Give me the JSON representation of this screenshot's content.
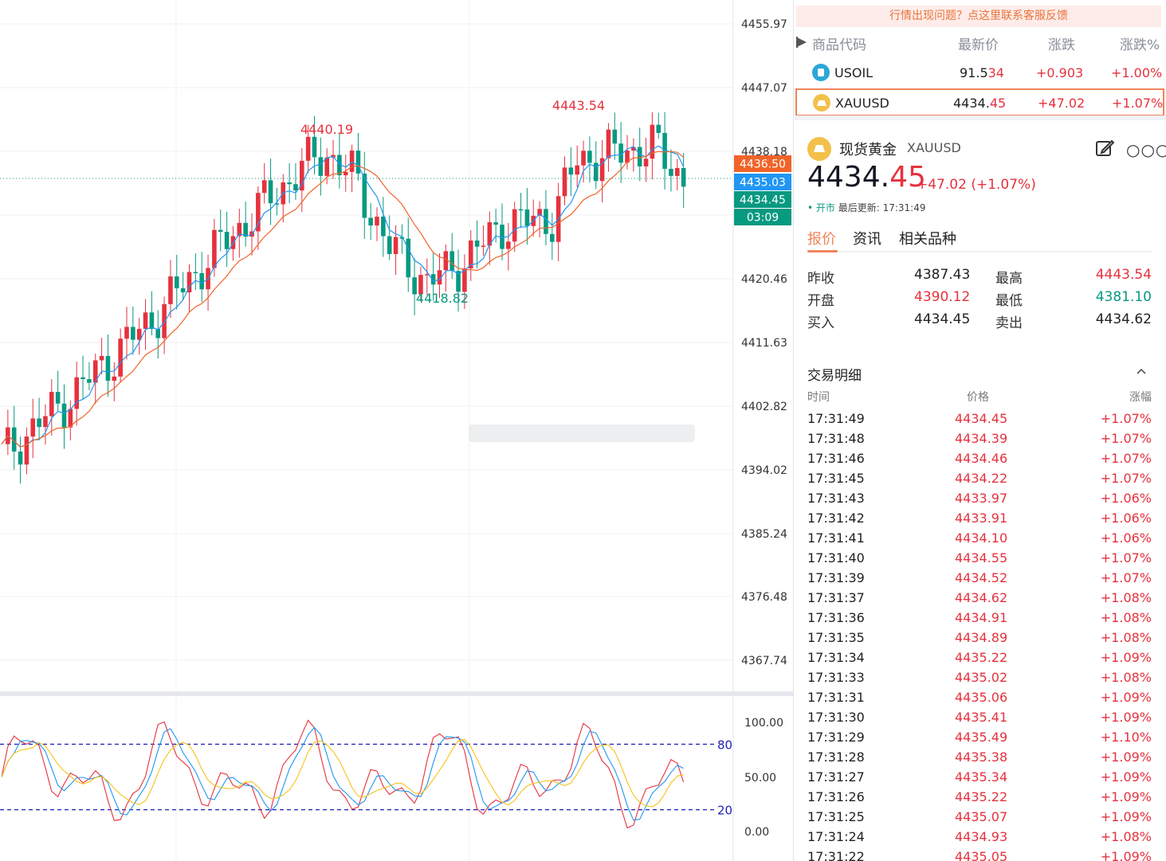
{
  "chart": {
    "price_axis_labels": [
      "4455.97",
      "4447.07",
      "4438.18",
      "4420.46",
      "4411.63",
      "4402.82",
      "4394.02",
      "4385.24",
      "4376.48",
      "4367.74"
    ],
    "price_tags": [
      {
        "label": "4436.50",
        "color": "#f0642a"
      },
      {
        "label": "4435.03",
        "color": "#2196f3"
      },
      {
        "label": "4434.45",
        "color": "#089981"
      },
      {
        "label": "03:09",
        "color": "#089981"
      }
    ],
    "annotations": [
      {
        "label": "4440.19",
        "color": "#e5323e"
      },
      {
        "label": "4443.54",
        "color": "#e5323e"
      },
      {
        "label": "4418.82",
        "color": "#089981"
      }
    ],
    "osc_axis_labels": [
      "100.00",
      "50.00",
      "0.00"
    ],
    "osc_levels": [
      "80",
      "20"
    ],
    "colors": {
      "up": "#e5323e",
      "down": "#089981",
      "ma_fast": "#2196f3",
      "ma_slow": "#f0642a",
      "osc_k": "#e5323e",
      "osc_d": "#2196f3",
      "osc_j": "#f7c21c",
      "level": "#1f1fb8"
    }
  },
  "panel": {
    "notice": "行情出现问题？点这里联系客服反馈",
    "watchlist": {
      "headers": {
        "code": "商品代码",
        "last": "最新价",
        "change": "涨跌",
        "change_pct": "涨跌%"
      },
      "rows": [
        {
          "symbol": "USOIL",
          "price_main": "91.5",
          "price_tail": "34",
          "change": "+0.903",
          "change_pct": "+1.00%",
          "icon": "oil-icon",
          "icon_color": "#2aa7d8"
        },
        {
          "symbol": "XAUUSD",
          "price_main": "4434.",
          "price_tail": "45",
          "change": "+47.02",
          "change_pct": "+1.07%",
          "icon": "gold-icon",
          "icon_color": "#f3c04a"
        }
      ]
    },
    "detail": {
      "name": "现货黄金",
      "symbol": "XAUUSD",
      "price_int": "4434.",
      "price_frac": "45",
      "change": "+47.02 (+1.07%)",
      "status": "• 开市",
      "updated": "最后更新: 17:31:49",
      "tabs": [
        "报价",
        "资讯",
        "相关品种"
      ],
      "stats": [
        {
          "l1": "昨收",
          "v1": "4387.43",
          "c1": "#222",
          "l2": "最高",
          "v2": "4443.54",
          "c2": "#e5323e"
        },
        {
          "l1": "开盘",
          "v1": "4390.12",
          "c1": "#e5323e",
          "l2": "最低",
          "v2": "4381.10",
          "c2": "#089981"
        },
        {
          "l1": "买入",
          "v1": "4434.45",
          "c1": "#222",
          "l2": "卖出",
          "v2": "4434.62",
          "c2": "#222"
        }
      ]
    },
    "trades": {
      "title": "交易明细",
      "headers": {
        "time": "时间",
        "price": "价格",
        "change": "涨幅"
      },
      "rows": [
        {
          "time": "17:31:49",
          "price": "4434.45",
          "pct": "+1.07%"
        },
        {
          "time": "17:31:48",
          "price": "4434.39",
          "pct": "+1.07%"
        },
        {
          "time": "17:31:46",
          "price": "4434.46",
          "pct": "+1.07%"
        },
        {
          "time": "17:31:45",
          "price": "4434.22",
          "pct": "+1.07%"
        },
        {
          "time": "17:31:43",
          "price": "4433.97",
          "pct": "+1.06%"
        },
        {
          "time": "17:31:42",
          "price": "4433.91",
          "pct": "+1.06%"
        },
        {
          "time": "17:31:41",
          "price": "4434.10",
          "pct": "+1.06%"
        },
        {
          "time": "17:31:40",
          "price": "4434.55",
          "pct": "+1.07%"
        },
        {
          "time": "17:31:39",
          "price": "4434.52",
          "pct": "+1.07%"
        },
        {
          "time": "17:31:37",
          "price": "4434.62",
          "pct": "+1.08%"
        },
        {
          "time": "17:31:36",
          "price": "4434.91",
          "pct": "+1.08%"
        },
        {
          "time": "17:31:35",
          "price": "4434.89",
          "pct": "+1.08%"
        },
        {
          "time": "17:31:34",
          "price": "4435.22",
          "pct": "+1.09%"
        },
        {
          "time": "17:31:33",
          "price": "4435.02",
          "pct": "+1.08%"
        },
        {
          "time": "17:31:31",
          "price": "4435.06",
          "pct": "+1.09%"
        },
        {
          "time": "17:31:30",
          "price": "4435.41",
          "pct": "+1.09%"
        },
        {
          "time": "17:31:29",
          "price": "4435.49",
          "pct": "+1.10%"
        },
        {
          "time": "17:31:28",
          "price": "4435.38",
          "pct": "+1.09%"
        },
        {
          "time": "17:31:27",
          "price": "4435.34",
          "pct": "+1.09%"
        },
        {
          "time": "17:31:26",
          "price": "4435.22",
          "pct": "+1.09%"
        },
        {
          "time": "17:31:25",
          "price": "4435.07",
          "pct": "+1.09%"
        },
        {
          "time": "17:31:24",
          "price": "4434.93",
          "pct": "+1.08%"
        },
        {
          "time": "17:31:22",
          "price": "4435.05",
          "pct": "+1.09%"
        }
      ]
    }
  }
}
